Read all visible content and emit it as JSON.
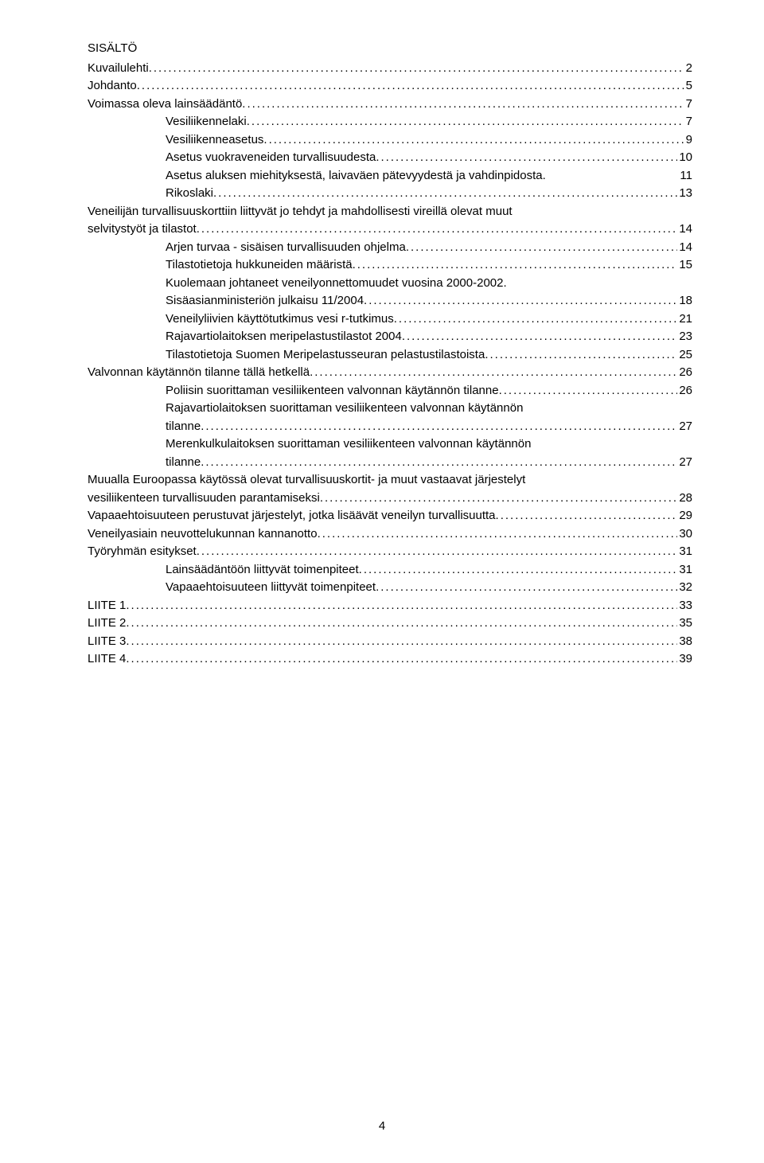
{
  "title": "SISÄLTÖ",
  "page_number": "4",
  "colors": {
    "text": "#000000",
    "background": "#ffffff"
  },
  "typography": {
    "font_family": "Verdana",
    "font_size_pt": 11
  },
  "toc": [
    {
      "label": "Kuvailulehti",
      "page": "2",
      "level": 1
    },
    {
      "label": "Johdanto",
      "page": "5",
      "level": 1
    },
    {
      "label": "Voimassa oleva lainsäädäntö",
      "page": "7",
      "level": 1
    },
    {
      "label": "Vesiliikennelaki",
      "page": "7",
      "level": 2
    },
    {
      "label": "Vesiliikenneasetus",
      "page": "9",
      "level": 2
    },
    {
      "label": "Asetus vuokraveneiden turvallisuudesta",
      "page": "10",
      "level": 2
    },
    {
      "label": "Asetus aluksen miehityksestä, laivaväen pätevyydestä ja vahdinpidosta.",
      "page": "11",
      "level": 2,
      "nodots": true
    },
    {
      "label": "Rikoslaki",
      "page": "13",
      "level": 2
    },
    {
      "label": "Veneilijän turvallisuuskorttiin liittyvät jo tehdyt ja mahdollisesti vireillä olevat muut selvitystyöt ja tilastot",
      "page": "14",
      "level": 1,
      "wrap": true
    },
    {
      "label": "Arjen turvaa - sisäisen turvallisuuden ohjelma",
      "page": "14",
      "level": 2
    },
    {
      "label": "Tilastotietoja hukkuneiden määristä",
      "page": "15",
      "level": 2
    },
    {
      "label": "Kuolemaan johtaneet veneilyonnettomuudet vuosina 2000-2002. Sisäasianministeriön julkaisu 11/2004",
      "page": "18",
      "level": 2,
      "wrap": true
    },
    {
      "label": "Veneilyliivien käyttötutkimus vesi r-tutkimus",
      "page": "21",
      "level": 2
    },
    {
      "label": "Rajavartiolaitoksen meripelastustilastot 2004",
      "page": "23",
      "level": 2
    },
    {
      "label": "Tilastotietoja Suomen Meripelastusseuran pelastustilastoista",
      "page": "25",
      "level": 2
    },
    {
      "label": "Valvonnan käytännön tilanne tällä hetkellä",
      "page": "26",
      "level": 1
    },
    {
      "label": "Poliisin suorittaman vesiliikenteen valvonnan käytännön tilanne",
      "page": "26",
      "level": 2
    },
    {
      "label": "Rajavartiolaitoksen suorittaman vesiliikenteen valvonnan käytännön tilanne",
      "page": "27",
      "level": 2,
      "wrap": true
    },
    {
      "label": "Merenkulkulaitoksen suorittaman vesiliikenteen valvonnan käytännön tilanne",
      "page": "27",
      "level": 2,
      "wrap": true
    },
    {
      "label": "Muualla Euroopassa käytössä olevat turvallisuuskortit- ja muut vastaavat järjestelyt vesiliikenteen turvallisuuden parantamiseksi",
      "page": "28",
      "level": 1,
      "wrap": true
    },
    {
      "label": "Vapaaehtoisuuteen perustuvat järjestelyt, jotka lisäävät veneilyn turvallisuutta",
      "page": "29",
      "level": 1
    },
    {
      "label": "Veneilyasiain neuvottelukunnan kannanotto",
      "page": "30",
      "level": 1
    },
    {
      "label": "Työryhmän esitykset",
      "page": "31",
      "level": 1
    },
    {
      "label": "Lainsäädäntöön liittyvät toimenpiteet",
      "page": "31",
      "level": 2
    },
    {
      "label": "Vapaaehtoisuuteen liittyvät toimenpiteet",
      "page": "32",
      "level": 2
    },
    {
      "label": "LIITE 1",
      "page": "33",
      "level": 1
    },
    {
      "label": "LIITE 2",
      "page": "35",
      "level": 1
    },
    {
      "label": "LIITE 3",
      "page": "38",
      "level": 1
    },
    {
      "label": "LIITE 4",
      "page": "39",
      "level": 1
    }
  ]
}
